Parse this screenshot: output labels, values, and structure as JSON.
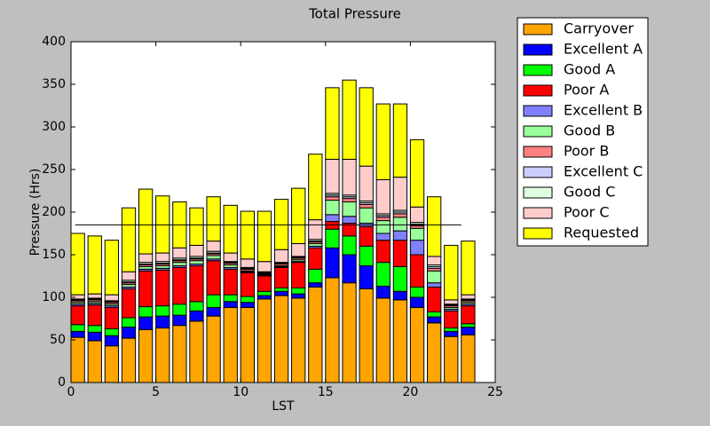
{
  "chart_data": {
    "type": "stacked-bar",
    "title": "Total Pressure",
    "x_label": "LST",
    "y_label": "Pressure (Hrs)",
    "x": [
      0,
      1,
      2,
      3,
      4,
      5,
      6,
      7,
      8,
      9,
      10,
      11,
      12,
      13,
      14,
      15,
      16,
      17,
      18,
      19,
      20,
      21,
      22,
      23
    ],
    "xlim": [
      0,
      25
    ],
    "xticks": [
      0,
      5,
      10,
      15,
      20,
      25
    ],
    "ylim": [
      0,
      400
    ],
    "yticks": [
      0,
      50,
      100,
      150,
      200,
      250,
      300,
      350,
      400
    ],
    "hline": {
      "y": 185,
      "x": [
        0.25,
        23
      ]
    },
    "legend": "outside-right",
    "series": [
      {
        "name": "Carryover",
        "color": "#ffa500",
        "values": [
          53,
          49,
          43,
          52,
          62,
          64,
          67,
          72,
          78,
          88,
          88,
          98,
          102,
          99,
          112,
          123,
          117,
          110,
          99,
          97,
          88,
          70,
          54,
          56
        ]
      },
      {
        "name": "Excellent A",
        "color": "#0000ff",
        "values": [
          7,
          10,
          12,
          13,
          15,
          14,
          12,
          12,
          10,
          7,
          6,
          4,
          5,
          5,
          5,
          35,
          33,
          27,
          14,
          10,
          12,
          7,
          6,
          9
        ]
      },
      {
        "name": "Good A",
        "color": "#00ff00",
        "values": [
          8,
          8,
          8,
          11,
          12,
          12,
          13,
          11,
          15,
          8,
          7,
          5,
          4,
          7,
          16,
          22,
          22,
          23,
          28,
          29,
          12,
          6,
          4,
          4
        ]
      },
      {
        "name": "Poor A",
        "color": "#ff0000",
        "values": [
          22,
          24,
          25,
          34,
          42,
          42,
          43,
          42,
          40,
          30,
          28,
          18,
          24,
          30,
          25,
          9,
          15,
          23,
          26,
          31,
          38,
          29,
          20,
          21
        ]
      },
      {
        "name": "Excellent B",
        "color": "#8080ff",
        "values": [
          2,
          2,
          2,
          2,
          2,
          2,
          2,
          2,
          2,
          2,
          1,
          1,
          1,
          1,
          2,
          8,
          8,
          4,
          8,
          11,
          17,
          5,
          2,
          2
        ]
      },
      {
        "name": "Good B",
        "color": "#99ff99",
        "values": [
          2,
          2,
          2,
          3,
          3,
          3,
          4,
          4,
          4,
          3,
          1,
          1,
          1,
          2,
          3,
          17,
          17,
          18,
          15,
          16,
          14,
          14,
          2,
          2
        ]
      },
      {
        "name": "Poor B",
        "color": "#ff8080",
        "values": [
          2,
          2,
          2,
          2,
          2,
          2,
          2,
          2,
          2,
          2,
          2,
          1,
          2,
          2,
          2,
          4,
          4,
          4,
          4,
          4,
          3,
          3,
          2,
          2
        ]
      },
      {
        "name": "Excellent C",
        "color": "#ccccff",
        "values": [
          1,
          1,
          1,
          1,
          1,
          1,
          1,
          1,
          1,
          1,
          1,
          1,
          1,
          1,
          1,
          2,
          2,
          2,
          2,
          2,
          2,
          2,
          1,
          1
        ]
      },
      {
        "name": "Good C",
        "color": "#e0ffe0",
        "values": [
          1,
          1,
          1,
          2,
          2,
          2,
          2,
          2,
          2,
          1,
          1,
          1,
          1,
          1,
          2,
          2,
          2,
          2,
          2,
          2,
          2,
          2,
          1,
          1
        ]
      },
      {
        "name": "Poor C",
        "color": "#ffcccc",
        "values": [
          5,
          5,
          7,
          10,
          10,
          10,
          12,
          13,
          12,
          10,
          10,
          12,
          15,
          15,
          23,
          40,
          42,
          41,
          40,
          39,
          18,
          10,
          5,
          5
        ]
      },
      {
        "name": "Requested",
        "color": "#ffff00",
        "values": [
          72,
          68,
          64,
          75,
          76,
          67,
          54,
          44,
          52,
          56,
          56,
          59,
          59,
          65,
          77,
          84,
          93,
          92,
          89,
          86,
          79,
          70,
          64,
          63
        ]
      }
    ]
  }
}
